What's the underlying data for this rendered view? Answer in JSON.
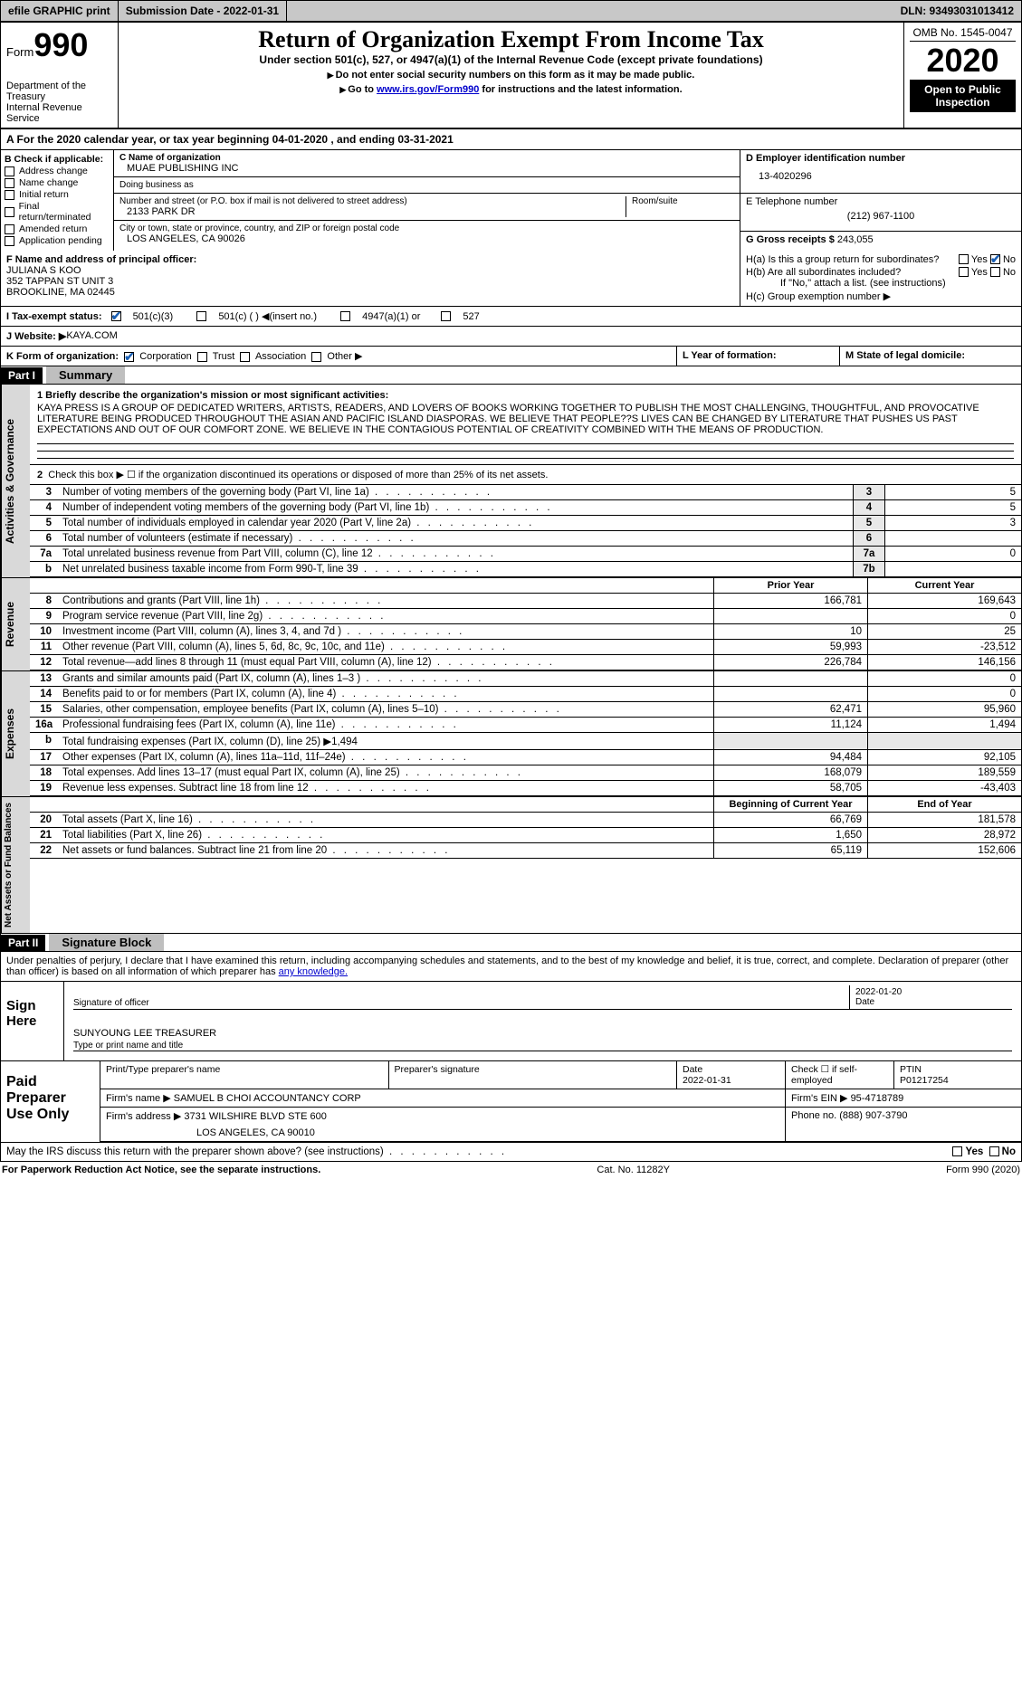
{
  "topbar": {
    "efile": "efile GRAPHIC print",
    "submission": "Submission Date - 2022-01-31",
    "dln": "DLN: 93493031013412"
  },
  "header": {
    "form_label": "Form",
    "form_num": "990",
    "dept": "Department of the Treasury",
    "irs": "Internal Revenue Service",
    "title": "Return of Organization Exempt From Income Tax",
    "subtitle": "Under section 501(c), 527, or 4947(a)(1) of the Internal Revenue Code (except private foundations)",
    "instr1": "Do not enter social security numbers on this form as it may be made public.",
    "instr2_pre": "Go to ",
    "instr2_link": "www.irs.gov/Form990",
    "instr2_post": " for instructions and the latest information.",
    "omb": "OMB No. 1545-0047",
    "year": "2020",
    "open": "Open to Public Inspection"
  },
  "row_a": "A   For the 2020 calendar year, or tax year beginning 04-01-2020    , and ending 03-31-2021",
  "sec_b": {
    "hdr": "B Check if applicable:",
    "items": [
      "Address change",
      "Name change",
      "Initial return",
      "Final return/terminated",
      "Amended return",
      "Application pending"
    ]
  },
  "sec_c": {
    "name_lbl": "C Name of organization",
    "name": "MUAE PUBLISHING INC",
    "dba_lbl": "Doing business as",
    "dba": "",
    "street_lbl": "Number and street (or P.O. box if mail is not delivered to street address)",
    "street": "2133 PARK DR",
    "room_lbl": "Room/suite",
    "city_lbl": "City or town, state or province, country, and ZIP or foreign postal code",
    "city": "LOS ANGELES, CA  90026"
  },
  "sec_d": {
    "ein_lbl": "D Employer identification number",
    "ein": "13-4020296",
    "tel_lbl": "E Telephone number",
    "tel": "(212) 967-1100",
    "gross_lbl": "G Gross receipts $",
    "gross": "243,055"
  },
  "sec_f": {
    "lbl": "F  Name and address of principal officer:",
    "name": "JULIANA S KOO",
    "addr1": "352 TAPPAN ST UNIT 3",
    "addr2": "BROOKLINE, MA  02445"
  },
  "sec_h": {
    "ha": "H(a)  Is this a group return for subordinates?",
    "hb": "H(b)  Are all subordinates included?",
    "hb_note": "If \"No,\" attach a list. (see instructions)",
    "hc": "H(c)  Group exemption number ▶",
    "yes": "Yes",
    "no": "No"
  },
  "line_i": {
    "lbl": "I    Tax-exempt status:",
    "o1": "501(c)(3)",
    "o2": "501(c) (  ) ◀(insert no.)",
    "o3": "4947(a)(1) or",
    "o4": "527"
  },
  "line_j": {
    "lbl": "J   Website: ▶",
    "val": " KAYA.COM"
  },
  "line_k": {
    "lbl": "K Form of organization:",
    "o1": "Corporation",
    "o2": "Trust",
    "o3": "Association",
    "o4": "Other ▶",
    "l": "L Year of formation:",
    "m": "M State of legal domicile:"
  },
  "part1": {
    "hdr": "Part I",
    "label": "Summary"
  },
  "mission": {
    "lbl": "1   Briefly describe the organization's mission or most significant activities:",
    "txt": "KAYA PRESS IS A GROUP OF DEDICATED WRITERS, ARTISTS, READERS, AND LOVERS OF BOOKS WORKING TOGETHER TO PUBLISH THE MOST CHALLENGING, THOUGHTFUL, AND PROVOCATIVE LITERATURE BEING PRODUCED THROUGHOUT THE ASIAN AND PACIFIC ISLAND DIASPORAS. WE BELIEVE THAT PEOPLE??S LIVES CAN BE CHANGED BY LITERATURE THAT PUSHES US PAST EXPECTATIONS AND OUT OF OUR COMFORT ZONE. WE BELIEVE IN THE CONTAGIOUS POTENTIAL OF CREATIVITY COMBINED WITH THE MEANS OF PRODUCTION."
  },
  "gov": {
    "vlabel": "Activities & Governance",
    "l2": "Check this box ▶ ☐ if the organization discontinued its operations or disposed of more than 25% of its net assets.",
    "rows": [
      {
        "n": "3",
        "d": "Number of voting members of the governing body (Part VI, line 1a)",
        "bn": "3",
        "v": "5"
      },
      {
        "n": "4",
        "d": "Number of independent voting members of the governing body (Part VI, line 1b)",
        "bn": "4",
        "v": "5"
      },
      {
        "n": "5",
        "d": "Total number of individuals employed in calendar year 2020 (Part V, line 2a)",
        "bn": "5",
        "v": "3"
      },
      {
        "n": "6",
        "d": "Total number of volunteers (estimate if necessary)",
        "bn": "6",
        "v": ""
      },
      {
        "n": "7a",
        "d": "Total unrelated business revenue from Part VIII, column (C), line 12",
        "bn": "7a",
        "v": "0"
      },
      {
        "n": "b",
        "d": "Net unrelated business taxable income from Form 990-T, line 39",
        "bn": "7b",
        "v": ""
      }
    ]
  },
  "rev": {
    "vlabel": "Revenue",
    "hdr_prior": "Prior Year",
    "hdr_curr": "Current Year",
    "rows": [
      {
        "n": "8",
        "d": "Contributions and grants (Part VIII, line 1h)",
        "p": "166,781",
        "c": "169,643"
      },
      {
        "n": "9",
        "d": "Program service revenue (Part VIII, line 2g)",
        "p": "",
        "c": "0"
      },
      {
        "n": "10",
        "d": "Investment income (Part VIII, column (A), lines 3, 4, and 7d )",
        "p": "10",
        "c": "25"
      },
      {
        "n": "11",
        "d": "Other revenue (Part VIII, column (A), lines 5, 6d, 8c, 9c, 10c, and 11e)",
        "p": "59,993",
        "c": "-23,512"
      },
      {
        "n": "12",
        "d": "Total revenue—add lines 8 through 11 (must equal Part VIII, column (A), line 12)",
        "p": "226,784",
        "c": "146,156"
      }
    ]
  },
  "exp": {
    "vlabel": "Expenses",
    "rows": [
      {
        "n": "13",
        "d": "Grants and similar amounts paid (Part IX, column (A), lines 1–3 )",
        "p": "",
        "c": "0"
      },
      {
        "n": "14",
        "d": "Benefits paid to or for members (Part IX, column (A), line 4)",
        "p": "",
        "c": "0"
      },
      {
        "n": "15",
        "d": "Salaries, other compensation, employee benefits (Part IX, column (A), lines 5–10)",
        "p": "62,471",
        "c": "95,960"
      },
      {
        "n": "16a",
        "d": "Professional fundraising fees (Part IX, column (A), line 11e)",
        "p": "11,124",
        "c": "1,494"
      },
      {
        "n": "b",
        "d": "Total fundraising expenses (Part IX, column (D), line 25) ▶1,494",
        "p": "",
        "c": ""
      },
      {
        "n": "17",
        "d": "Other expenses (Part IX, column (A), lines 11a–11d, 11f–24e)",
        "p": "94,484",
        "c": "92,105"
      },
      {
        "n": "18",
        "d": "Total expenses. Add lines 13–17 (must equal Part IX, column (A), line 25)",
        "p": "168,079",
        "c": "189,559"
      },
      {
        "n": "19",
        "d": "Revenue less expenses. Subtract line 18 from line 12",
        "p": "58,705",
        "c": "-43,403"
      }
    ]
  },
  "net": {
    "vlabel": "Net Assets or Fund Balances",
    "hdr_beg": "Beginning of Current Year",
    "hdr_end": "End of Year",
    "rows": [
      {
        "n": "20",
        "d": "Total assets (Part X, line 16)",
        "p": "66,769",
        "c": "181,578"
      },
      {
        "n": "21",
        "d": "Total liabilities (Part X, line 26)",
        "p": "1,650",
        "c": "28,972"
      },
      {
        "n": "22",
        "d": "Net assets or fund balances. Subtract line 21 from line 20",
        "p": "65,119",
        "c": "152,606"
      }
    ]
  },
  "part2": {
    "hdr": "Part II",
    "label": "Signature Block"
  },
  "sig": {
    "decl": "Under penalties of perjury, I declare that I have examined this return, including accompanying schedules and statements, and to the best of my knowledge and belief, it is true, correct, and complete. Declaration of preparer (other than officer) is based on all information of which preparer has ",
    "decl_link": "any knowledge.",
    "sign_here": "Sign Here",
    "sig_of_officer": "Signature of officer",
    "date1": "2022-01-20",
    "date_lbl": "Date",
    "officer": "SUNYOUNG LEE  TREASURER",
    "officer_lbl": "Type or print name and title"
  },
  "prep": {
    "label": "Paid Preparer Use Only",
    "h1": "Print/Type preparer's name",
    "h2": "Preparer's signature",
    "h3_lbl": "Date",
    "h3": "2022-01-31",
    "h4": "Check ☐ if self-employed",
    "h5_lbl": "PTIN",
    "h5": "P01217254",
    "firm_lbl": "Firm's name    ▶",
    "firm": "SAMUEL B CHOI ACCOUNTANCY CORP",
    "ein_lbl": "Firm's EIN ▶",
    "ein": "95-4718789",
    "addr_lbl": "Firm's address ▶",
    "addr1": "3731 WILSHIRE BLVD STE 600",
    "addr2": "LOS ANGELES, CA  90010",
    "phone_lbl": "Phone no.",
    "phone": "(888) 907-3790"
  },
  "discuss": {
    "q": "May the IRS discuss this return with the preparer shown above? (see instructions)",
    "yes": "Yes",
    "no": "No"
  },
  "footer": {
    "l": "For Paperwork Reduction Act Notice, see the separate instructions.",
    "c": "Cat. No. 11282Y",
    "r": "Form 990 (2020)"
  }
}
